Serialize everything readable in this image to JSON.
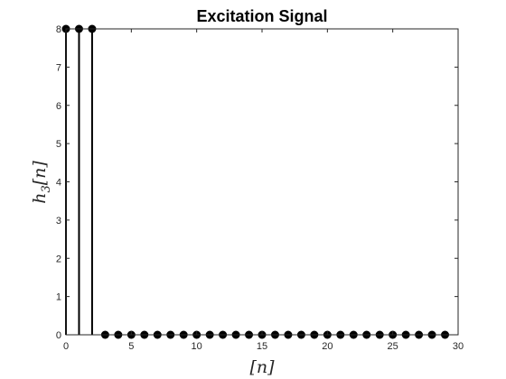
{
  "chart_data": {
    "type": "stem",
    "title": "Excitation Signal",
    "xlabel": "[n]",
    "ylabel": "h3[n]",
    "ylabel_parts": {
      "base": "h",
      "sub": "3",
      "rest": "[n]"
    },
    "xlim": [
      0,
      30
    ],
    "ylim": [
      0,
      8
    ],
    "xticks": [
      0,
      5,
      10,
      15,
      20,
      25,
      30
    ],
    "yticks": [
      0,
      1,
      2,
      3,
      4,
      5,
      6,
      7,
      8
    ],
    "x": [
      0,
      1,
      2,
      3,
      4,
      5,
      6,
      7,
      8,
      9,
      10,
      11,
      12,
      13,
      14,
      15,
      16,
      17,
      18,
      19,
      20,
      21,
      22,
      23,
      24,
      25,
      26,
      27,
      28,
      29
    ],
    "values": [
      8,
      8,
      8,
      0,
      0,
      0,
      0,
      0,
      0,
      0,
      0,
      0,
      0,
      0,
      0,
      0,
      0,
      0,
      0,
      0,
      0,
      0,
      0,
      0,
      0,
      0,
      0,
      0,
      0,
      0
    ],
    "box": true,
    "grid": false,
    "marker_color": "#000000"
  }
}
